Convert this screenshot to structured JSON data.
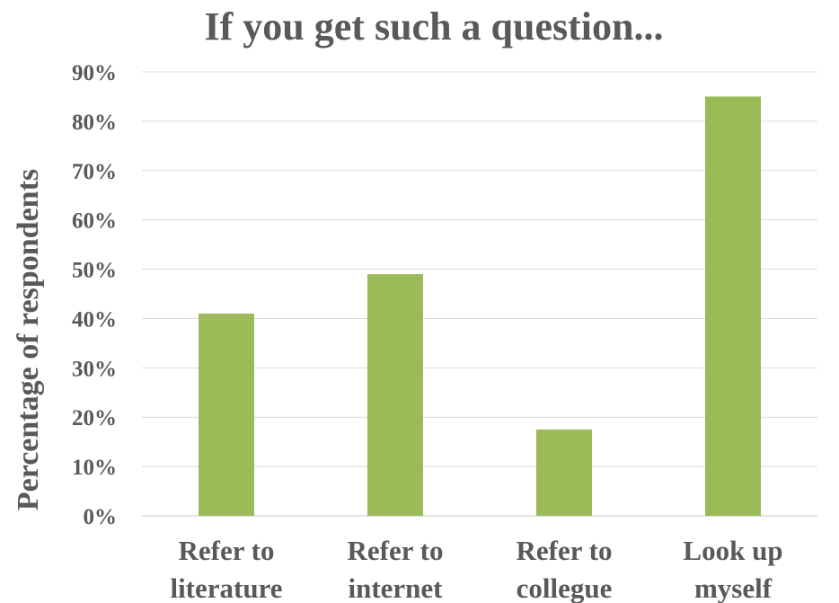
{
  "chart_data": {
    "type": "bar",
    "title": "If you get such a question...",
    "ylabel": "Percentage of respondents",
    "xlabel": "",
    "categories": [
      [
        "Refer to",
        "literature"
      ],
      [
        "Refer to",
        "internet"
      ],
      [
        "Refer to",
        "collegue"
      ],
      [
        "Look up",
        "myself"
      ]
    ],
    "values": [
      41,
      49,
      17.5,
      85
    ],
    "ylim": [
      0,
      90
    ],
    "yticks": [
      0,
      10,
      20,
      30,
      40,
      50,
      60,
      70,
      80,
      90
    ],
    "ytick_labels": [
      "0%",
      "10%",
      "20%",
      "30%",
      "40%",
      "50%",
      "60%",
      "70%",
      "80%",
      "90%"
    ],
    "grid": true,
    "legend": "none",
    "bar_color": "#9bbb59",
    "text_color": "#595959",
    "grid_color": "#d9d9d9"
  }
}
